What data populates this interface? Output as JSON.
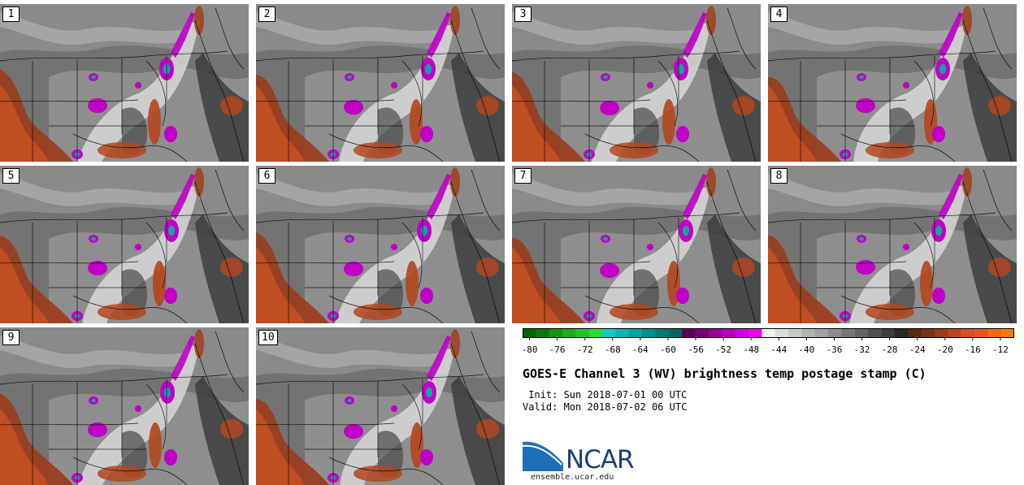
{
  "panels": [
    {
      "label": "1"
    },
    {
      "label": "2"
    },
    {
      "label": "3"
    },
    {
      "label": "4"
    },
    {
      "label": "5"
    },
    {
      "label": "6"
    },
    {
      "label": "7"
    },
    {
      "label": "8"
    },
    {
      "label": "9"
    },
    {
      "label": "10"
    }
  ],
  "colorbar": {
    "colors": [
      "#006400",
      "#0a7a0a",
      "#149414",
      "#1eab1e",
      "#28c228",
      "#32d832",
      "#14c8c8",
      "#0fb4b4",
      "#0aa0a0",
      "#078c8c",
      "#057878",
      "#036464",
      "#5a005a",
      "#780078",
      "#960096",
      "#b400b4",
      "#d200d2",
      "#f000f0",
      "#f0f0f0",
      "#dcdcdc",
      "#c8c8c8",
      "#b4b4b4",
      "#a0a0a0",
      "#8c8c8c",
      "#787878",
      "#646464",
      "#505050",
      "#3c3c3c",
      "#282828",
      "#5a2814",
      "#7a3218",
      "#9a3c1c",
      "#ba4620",
      "#d25022",
      "#e05a20",
      "#f06a18",
      "#ff7a10"
    ],
    "tick_labels": [
      "-80",
      "-76",
      "-72",
      "-68",
      "-64",
      "-60",
      "-56",
      "-52",
      "-48",
      "-44",
      "-40",
      "-36",
      "-32",
      "-28",
      "-24",
      "-20",
      "-16",
      "-12"
    ]
  },
  "title": "GOES-E Channel 3 (WV) brightness temp postage stamp (C)",
  "init": " Init: Sun 2018-07-01 00 UTC",
  "valid": "Valid: Mon 2018-07-02 06 UTC",
  "logo": "NCAR",
  "site": "ensemble.ucar.edu"
}
